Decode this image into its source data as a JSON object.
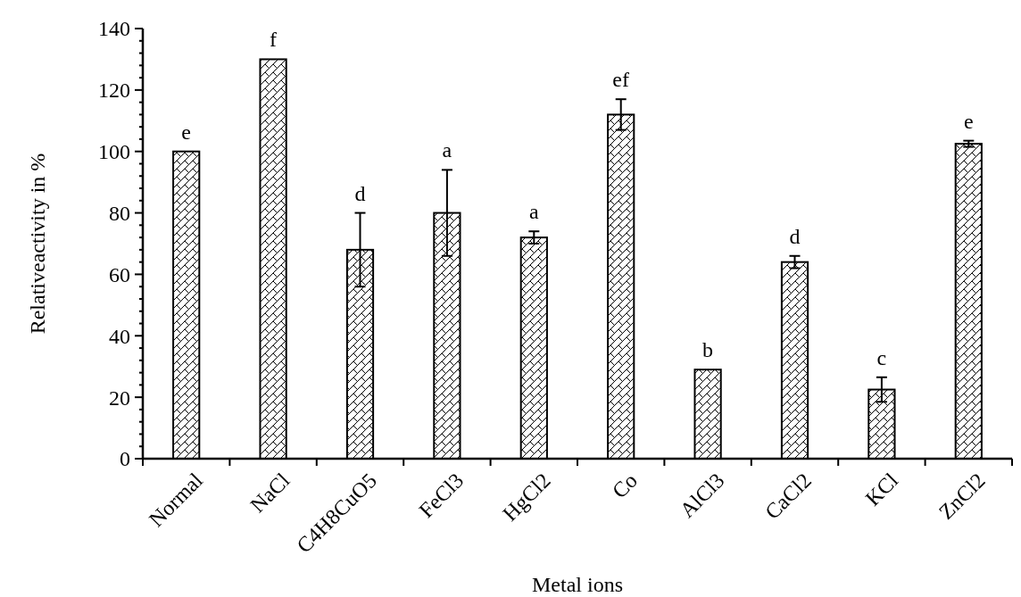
{
  "chart_data": {
    "type": "bar",
    "xlabel": "Metal ions",
    "ylabel": "Relativeactivity in %",
    "categories": [
      "Normal",
      "NaCl",
      "C4H8CuO5",
      "FeCl3",
      "HgCl2",
      "Co",
      "AlCl3",
      "CaCl2",
      "KCl",
      "ZnCl2"
    ],
    "values": [
      100,
      130,
      68,
      80,
      72,
      112,
      29,
      64,
      22.5,
      102.5
    ],
    "errors": [
      null,
      null,
      12,
      14,
      2,
      5,
      null,
      2,
      4,
      1
    ],
    "color": "#000000",
    "ylim": [
      0,
      140
    ],
    "yticks": [
      0,
      {
        "value": 4,
        "label": null
      },
      {
        "value": 8,
        "label": null
      },
      {
        "value": 12,
        "label": null
      },
      {
        "value": 16,
        "label": null
      },
      20,
      {
        "value": 24,
        "label": null
      },
      {
        "value": 28,
        "label": null
      },
      {
        "value": 32,
        "label": null
      },
      {
        "value": 36,
        "label": null
      },
      40,
      {
        "value": 44,
        "label": null
      },
      {
        "value": 48,
        "label": null
      },
      {
        "value": 52,
        "label": null
      },
      {
        "value": 56,
        "label": null
      },
      60,
      {
        "value": 64,
        "label": null
      },
      {
        "value": 68,
        "label": null
      },
      {
        "value": 72,
        "label": null
      },
      {
        "value": 76,
        "label": null
      },
      80,
      {
        "value": 84,
        "label": null
      },
      {
        "value": 88,
        "label": null
      },
      {
        "value": 92,
        "label": null
      },
      {
        "value": 96,
        "label": null
      },
      100,
      {
        "value": 104,
        "label": null
      },
      {
        "value": 108,
        "label": null
      },
      {
        "value": 112,
        "label": null
      },
      {
        "value": 116,
        "label": null
      },
      120,
      {
        "value": 124,
        "label": null
      },
      {
        "value": 128,
        "label": null
      },
      {
        "value": 132,
        "label": null
      },
      {
        "value": 136,
        "label": null
      },
      140
    ],
    "annotations": [
      "e",
      "f",
      "d",
      "a",
      "a",
      "ef",
      "b",
      "d",
      "c",
      "e"
    ]
  }
}
